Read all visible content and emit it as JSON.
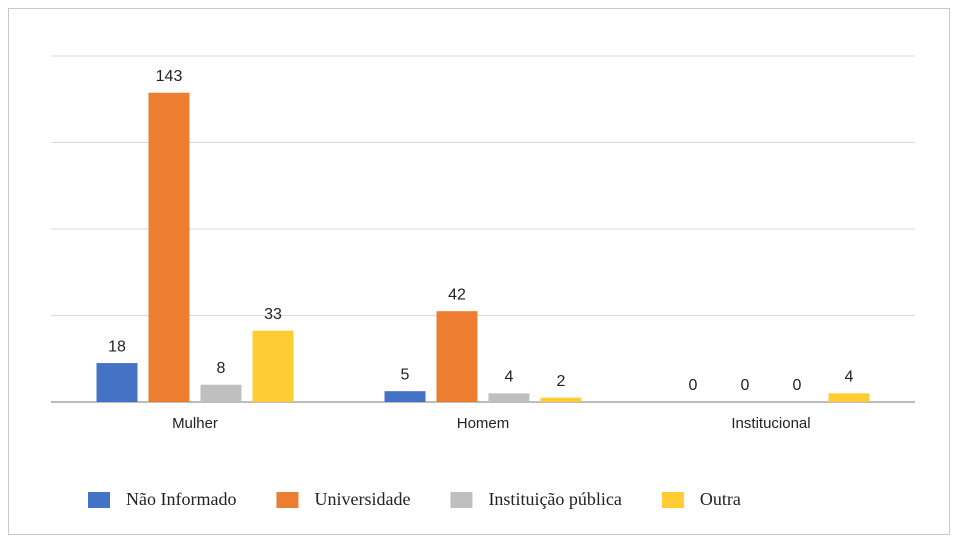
{
  "chart_data": {
    "type": "bar",
    "categories": [
      "Mulher",
      "Homem",
      "Institucional"
    ],
    "series": [
      {
        "name": "Não Informado",
        "color": "#4472c4",
        "values": [
          18,
          5,
          0
        ]
      },
      {
        "name": "Universidade",
        "color": "#ed7d31",
        "values": [
          143,
          42,
          0
        ]
      },
      {
        "name": "Instituição pública",
        "color": "#bfbfbf",
        "values": [
          8,
          4,
          0
        ]
      },
      {
        "name": "Outra",
        "color": "#ffcd33",
        "values": [
          33,
          2,
          4
        ]
      }
    ],
    "ylim": [
      0,
      160
    ],
    "yticks": [
      0,
      40,
      80,
      120,
      160
    ],
    "grid": true,
    "legend": "bottom"
  }
}
